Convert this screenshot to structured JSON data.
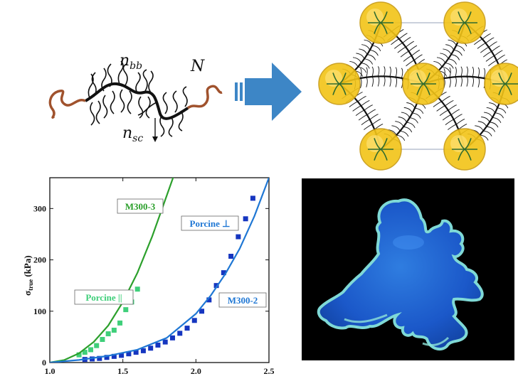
{
  "molecule": {
    "label_backbone": "n",
    "label_backbone_sub": "bb",
    "label_sidechain": "n",
    "label_sidechain_sub": "sc",
    "label_linear": "N"
  },
  "colors": {
    "green": "#2ca02c",
    "lightgreen": "#3fcf7a",
    "blue": "#1f77d4",
    "navy": "#1636c0",
    "arrow": "#3d86c6",
    "brown": "#a0522d",
    "bead": "#f2c417"
  },
  "chart_data": {
    "type": "scatter",
    "ylabel": "σ",
    "ylabel_sub": "true",
    "ylabel_unit": " (kPa)",
    "xlim": [
      1.0,
      2.5
    ],
    "ylim": [
      0,
      360
    ],
    "xticks": [
      "1.0",
      "1.5",
      "2.0",
      "2.5"
    ],
    "yticks": [
      "0",
      "100",
      "200",
      "300"
    ],
    "xtick_values": [
      1.0,
      1.5,
      2.0,
      2.5
    ],
    "ytick_values": [
      0,
      100,
      200,
      300
    ],
    "annotations": {
      "m300_3": "M300-3",
      "m300_2": "M300-2",
      "porcine_par": "Porcine ||",
      "porcine_perp": "Porcine ⊥"
    },
    "series": [
      {
        "name": "Porcine ||",
        "kind": "points",
        "color": "#3fcf7a",
        "x": [
          1.2,
          1.24,
          1.28,
          1.32,
          1.36,
          1.4,
          1.44,
          1.48,
          1.52,
          1.56,
          1.6
        ],
        "y": [
          15,
          20,
          25,
          33,
          45,
          56,
          63,
          77,
          103,
          118,
          143
        ]
      },
      {
        "name": "Porcine ⊥",
        "kind": "points",
        "color": "#1636c0",
        "x": [
          1.24,
          1.29,
          1.34,
          1.39,
          1.44,
          1.49,
          1.54,
          1.59,
          1.64,
          1.69,
          1.74,
          1.79,
          1.84,
          1.89,
          1.94,
          1.99,
          2.04,
          2.09,
          2.14,
          2.19,
          2.24,
          2.29,
          2.34,
          2.39
        ],
        "y": [
          6,
          7,
          8,
          10,
          12,
          14,
          17,
          20,
          23,
          28,
          34,
          40,
          48,
          57,
          67,
          82,
          100,
          122,
          150,
          175,
          207,
          245,
          280,
          320
        ]
      },
      {
        "name": "M300-3",
        "kind": "line",
        "color": "#2ca02c",
        "x": [
          1.0,
          1.1,
          1.2,
          1.3,
          1.4,
          1.5,
          1.6,
          1.7,
          1.8,
          1.85
        ],
        "y": [
          0,
          5,
          18,
          40,
          72,
          118,
          175,
          245,
          325,
          365
        ]
      },
      {
        "name": "M300-2",
        "kind": "line",
        "color": "#1f77d4",
        "x": [
          1.0,
          1.2,
          1.4,
          1.6,
          1.8,
          2.0,
          2.1,
          2.2,
          2.3,
          2.4,
          2.5
        ],
        "y": [
          0,
          5,
          13,
          25,
          48,
          95,
          130,
          172,
          222,
          285,
          360
        ]
      }
    ]
  }
}
